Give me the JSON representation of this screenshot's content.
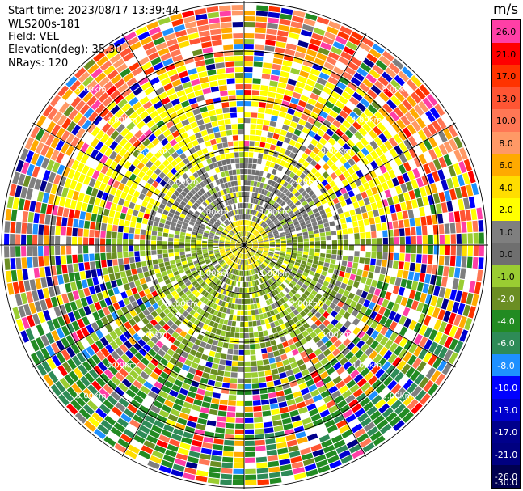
{
  "header": {
    "start_time": "Start time: 2023/08/17 13:39:44",
    "instrument": "WLS200s-181",
    "field": "Field: VEL",
    "elevation": "Elevation(deg): 35.30",
    "nrays": "NRays: 120"
  },
  "ring_labels": [
    "1.00km",
    "2.00km",
    "3.00km",
    "4.00km",
    "5.00km"
  ],
  "colorbar": {
    "unit": "m/s",
    "ticks": [
      "26.0",
      "21.0",
      "17.0",
      "13.0",
      "10.0",
      "8.0",
      "6.0",
      "4.0",
      "2.0",
      "1.0",
      "0.0",
      "-1.0",
      "-2.0",
      "-4.0",
      "-6.0",
      "-8.0",
      "-10.0",
      "-13.0",
      "-17.0",
      "-21.0",
      "-26.0",
      "-30.0"
    ],
    "colors": [
      "#ff3fa6",
      "#ff0000",
      "#ff3300",
      "#ff5533",
      "#ff7755",
      "#ff9966",
      "#ffaa00",
      "#ffdd00",
      "#ffff00",
      "#7f7f7f",
      "#6f6f6f",
      "#9acd32",
      "#6b8e23",
      "#228b22",
      "#2e8b57",
      "#1e90ff",
      "#0000ff",
      "#0000cd",
      "#00008b",
      "#000080",
      "#000050"
    ]
  }
}
